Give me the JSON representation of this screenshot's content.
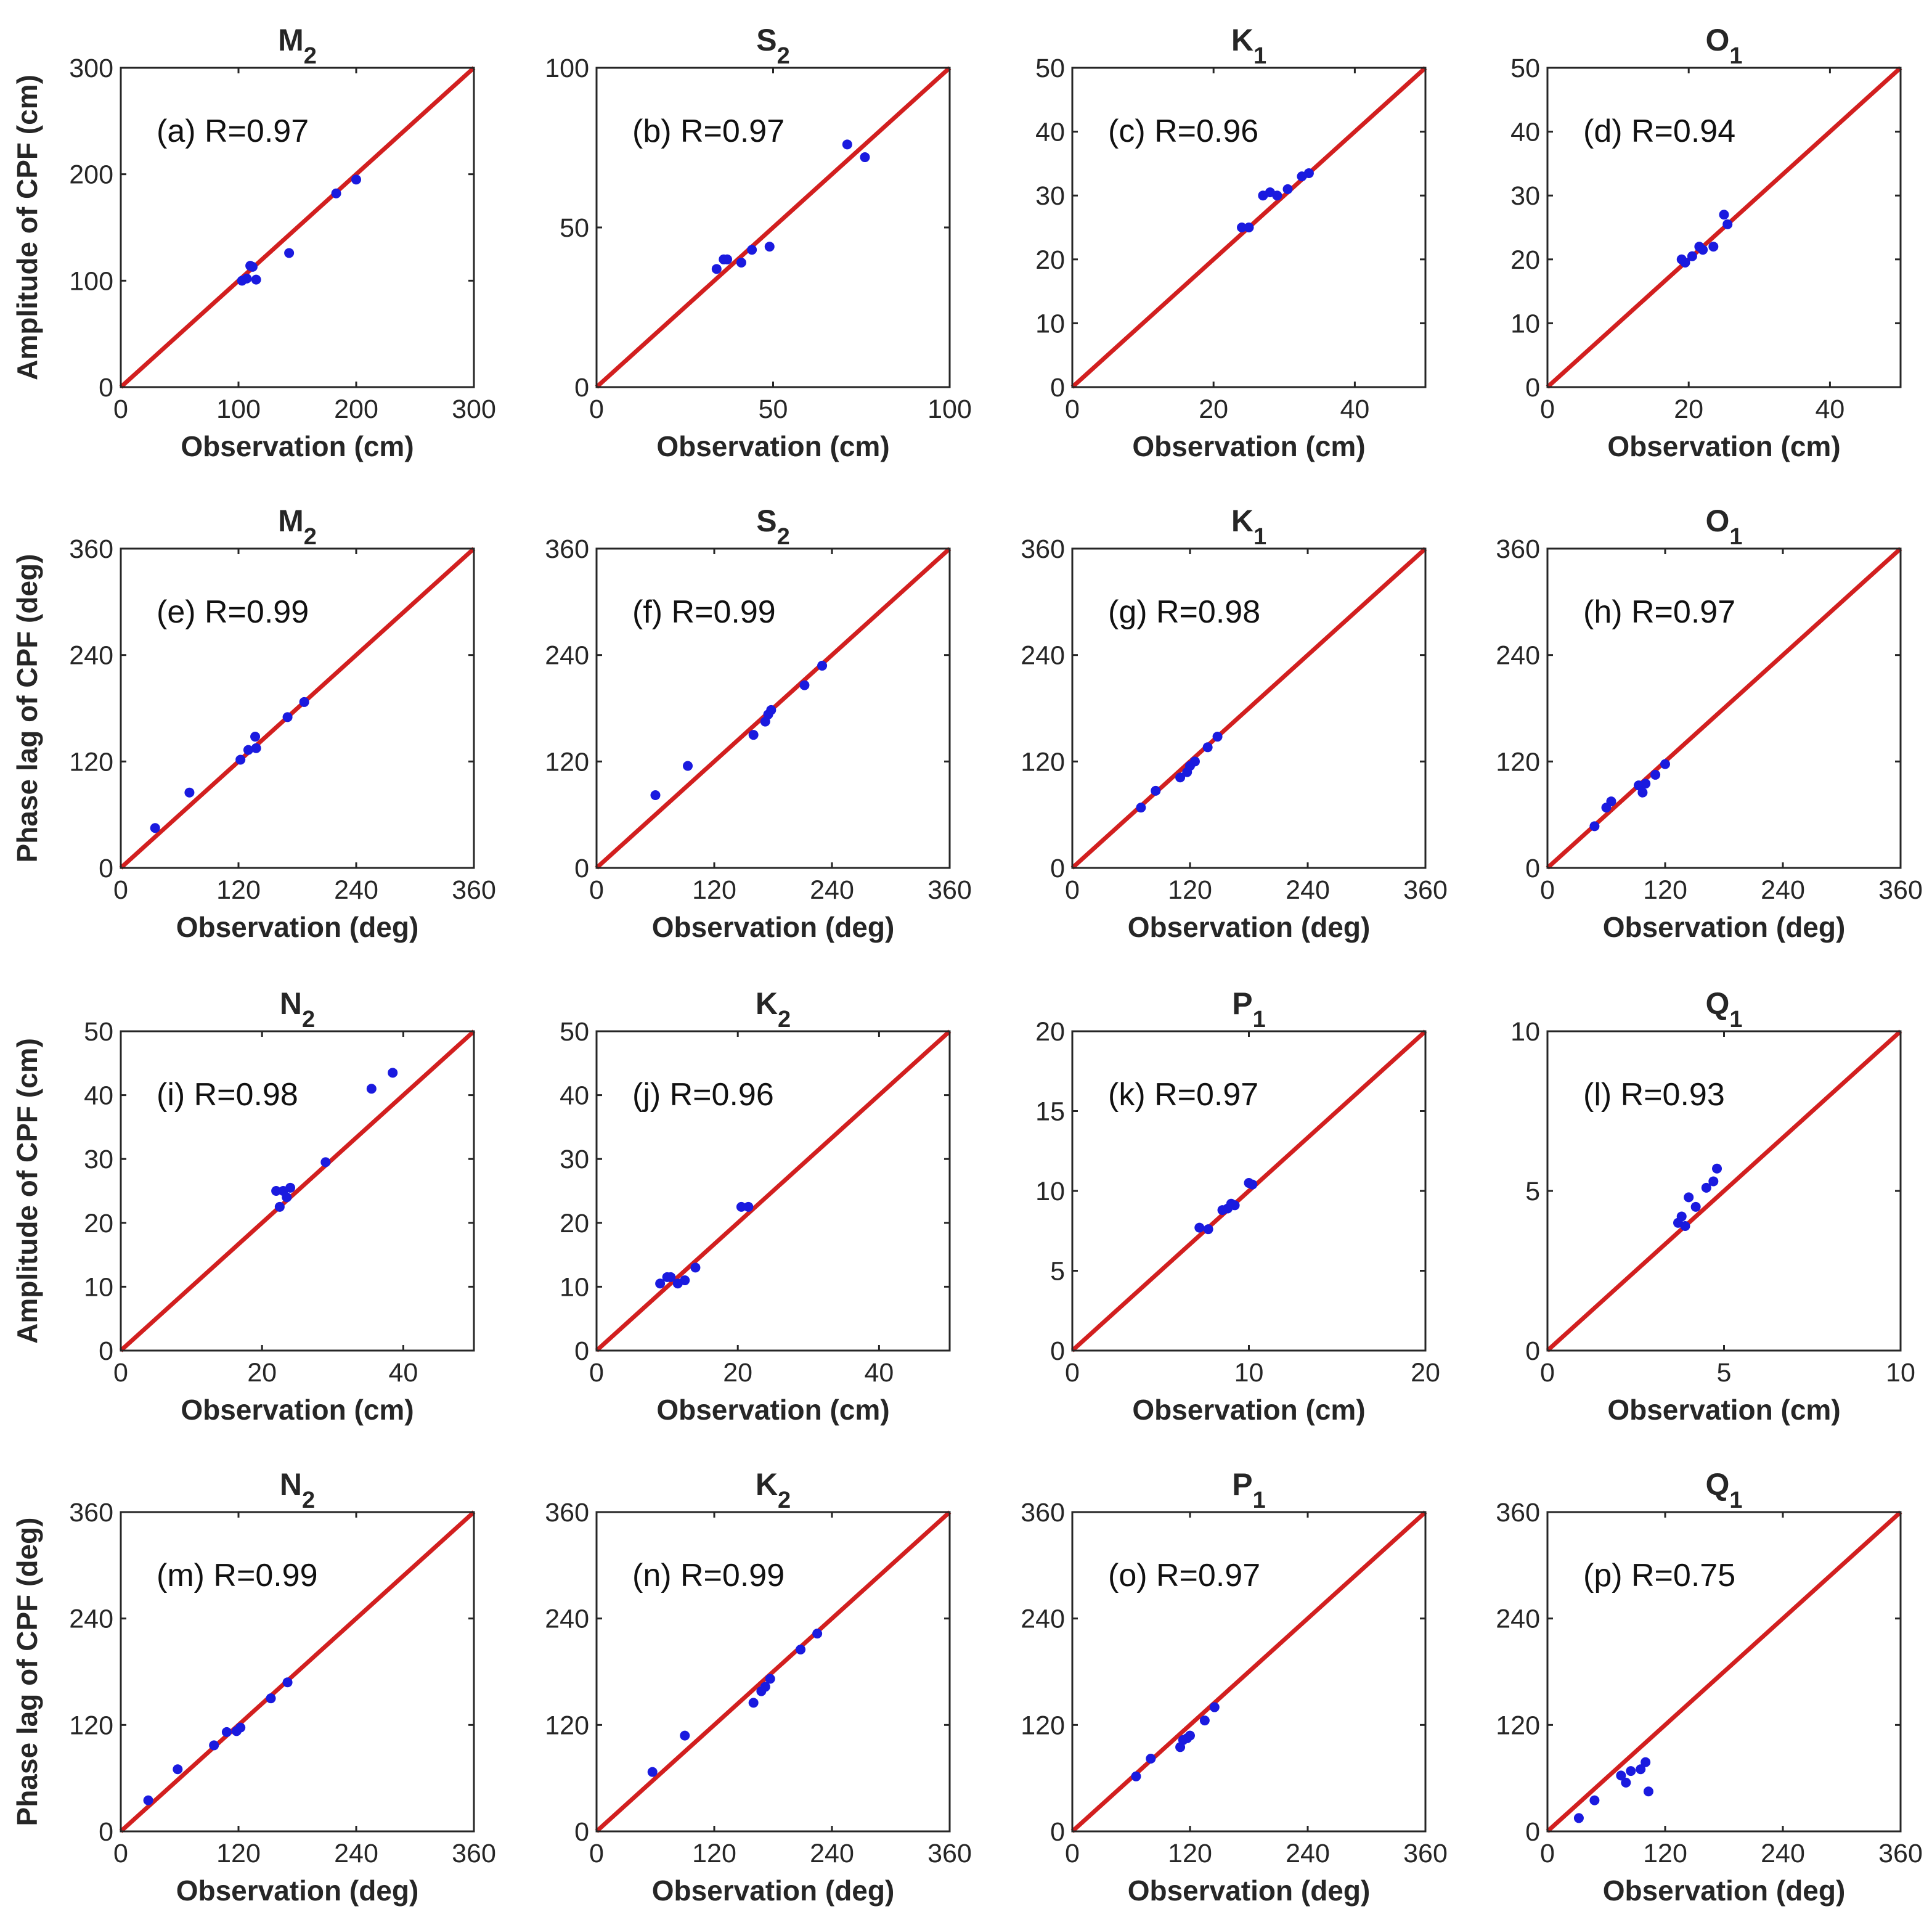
{
  "colors": {
    "identity_line": "#d21f1f",
    "points": "#1a1adf",
    "axes": "#262626"
  },
  "chart_data": [
    {
      "type": "scatter",
      "title": "M",
      "title_sub": "2",
      "panel_label": "(a) R=0.97",
      "xlabel": "Observation (cm)",
      "ylabel": "Amplitude of CPF (cm)",
      "xlim": [
        0,
        300
      ],
      "ylim": [
        0,
        300
      ],
      "xticks": [
        0,
        100,
        200,
        300
      ],
      "yticks": [
        0,
        100,
        200,
        300
      ],
      "identity_line": true,
      "x": [
        103,
        107,
        110,
        112,
        115,
        143,
        183,
        200
      ],
      "y": [
        100,
        102,
        114,
        113,
        101,
        126,
        182,
        195
      ]
    },
    {
      "type": "scatter",
      "title": "S",
      "title_sub": "2",
      "panel_label": "(b) R=0.97",
      "xlabel": "Observation (cm)",
      "ylabel": "",
      "xlim": [
        0,
        100
      ],
      "ylim": [
        0,
        100
      ],
      "xticks": [
        0,
        50,
        100
      ],
      "yticks": [
        0,
        50,
        100
      ],
      "identity_line": true,
      "x": [
        34,
        36,
        37,
        41,
        44,
        49,
        71,
        76
      ],
      "y": [
        37,
        40,
        40,
        39,
        43,
        44,
        76,
        72
      ]
    },
    {
      "type": "scatter",
      "title": "K",
      "title_sub": "1",
      "panel_label": "(c) R=0.96",
      "xlabel": "Observation (cm)",
      "ylabel": "",
      "xlim": [
        0,
        50
      ],
      "ylim": [
        0,
        50
      ],
      "xticks": [
        0,
        20,
        40
      ],
      "yticks": [
        0,
        10,
        20,
        30,
        40,
        50
      ],
      "identity_line": true,
      "x": [
        24,
        25,
        27,
        28,
        29,
        30.5,
        32.5,
        33.5
      ],
      "y": [
        25,
        25,
        30,
        30.5,
        30,
        31,
        33,
        33.5
      ]
    },
    {
      "type": "scatter",
      "title": "O",
      "title_sub": "1",
      "panel_label": "(d) R=0.94",
      "xlabel": "Observation (cm)",
      "ylabel": "",
      "xlim": [
        0,
        50
      ],
      "ylim": [
        0,
        50
      ],
      "xticks": [
        0,
        20,
        40
      ],
      "yticks": [
        0,
        10,
        20,
        30,
        40,
        50
      ],
      "identity_line": true,
      "x": [
        19,
        19.5,
        20.5,
        21.5,
        22,
        23.5,
        25,
        25.5
      ],
      "y": [
        20,
        19.5,
        20.5,
        22,
        21.5,
        22,
        27,
        25.5
      ]
    },
    {
      "type": "scatter",
      "title": "M",
      "title_sub": "2",
      "panel_label": "(e) R=0.99",
      "xlabel": "Observation (deg)",
      "ylabel": "Phase lag of CPF (deg)",
      "xlim": [
        0,
        360
      ],
      "ylim": [
        0,
        360
      ],
      "xticks": [
        0,
        120,
        240,
        360
      ],
      "yticks": [
        0,
        120,
        240,
        360
      ],
      "identity_line": true,
      "x": [
        35,
        70,
        122,
        130,
        137,
        138,
        170,
        187
      ],
      "y": [
        45,
        85,
        122,
        133,
        148,
        135,
        170,
        187
      ]
    },
    {
      "type": "scatter",
      "title": "S",
      "title_sub": "2",
      "panel_label": "(f) R=0.99",
      "xlabel": "Observation (deg)",
      "ylabel": "",
      "xlim": [
        0,
        360
      ],
      "ylim": [
        0,
        360
      ],
      "xticks": [
        0,
        120,
        240,
        360
      ],
      "yticks": [
        0,
        120,
        240,
        360
      ],
      "identity_line": true,
      "x": [
        60,
        93,
        160,
        172,
        175,
        178,
        212,
        230
      ],
      "y": [
        82,
        115,
        150,
        165,
        173,
        178,
        206,
        228
      ]
    },
    {
      "type": "scatter",
      "title": "K",
      "title_sub": "1",
      "panel_label": "(g) R=0.98",
      "xlabel": "Observation (deg)",
      "ylabel": "",
      "xlim": [
        0,
        360
      ],
      "ylim": [
        0,
        360
      ],
      "xticks": [
        0,
        120,
        240,
        360
      ],
      "yticks": [
        0,
        120,
        240,
        360
      ],
      "identity_line": true,
      "x": [
        70,
        85,
        110,
        117,
        120,
        125,
        138,
        148
      ],
      "y": [
        68,
        87,
        102,
        108,
        115,
        120,
        136,
        148
      ]
    },
    {
      "type": "scatter",
      "title": "O",
      "title_sub": "1",
      "panel_label": "(h) R=0.97",
      "xlabel": "Observation (deg)",
      "ylabel": "",
      "xlim": [
        0,
        360
      ],
      "ylim": [
        0,
        360
      ],
      "xticks": [
        0,
        120,
        240,
        360
      ],
      "yticks": [
        0,
        120,
        240,
        360
      ],
      "identity_line": true,
      "x": [
        48,
        60,
        65,
        93,
        97,
        100,
        110,
        120
      ],
      "y": [
        47,
        68,
        75,
        93,
        85,
        95,
        105,
        117
      ]
    },
    {
      "type": "scatter",
      "title": "N",
      "title_sub": "2",
      "panel_label": "(i) R=0.98",
      "xlabel": "Observation (cm)",
      "ylabel": "Amplitude of CPF (cm)",
      "xlim": [
        0,
        50
      ],
      "ylim": [
        0,
        50
      ],
      "xticks": [
        0,
        20,
        40
      ],
      "yticks": [
        0,
        10,
        20,
        30,
        40,
        50
      ],
      "identity_line": true,
      "x": [
        22,
        22.5,
        23,
        23.5,
        24,
        29,
        35.5,
        38.5
      ],
      "y": [
        25,
        22.5,
        25,
        24,
        25.5,
        29.5,
        41,
        43.5
      ]
    },
    {
      "type": "scatter",
      "title": "K",
      "title_sub": "2",
      "panel_label": "(j) R=0.96",
      "xlabel": "Observation (cm)",
      "ylabel": "",
      "xlim": [
        0,
        50
      ],
      "ylim": [
        0,
        50
      ],
      "xticks": [
        0,
        20,
        40
      ],
      "yticks": [
        0,
        10,
        20,
        30,
        40,
        50
      ],
      "identity_line": true,
      "x": [
        9,
        10,
        10.5,
        11.5,
        12.5,
        14,
        20.5,
        21.5
      ],
      "y": [
        10.5,
        11.5,
        11.5,
        10.5,
        11,
        13,
        22.5,
        22.5
      ]
    },
    {
      "type": "scatter",
      "title": "P",
      "title_sub": "1",
      "panel_label": "(k) R=0.97",
      "xlabel": "Observation (cm)",
      "ylabel": "",
      "xlim": [
        0,
        20
      ],
      "ylim": [
        0,
        20
      ],
      "xticks": [
        0,
        10,
        20
      ],
      "yticks": [
        0,
        5,
        10,
        15,
        20
      ],
      "identity_line": true,
      "x": [
        7.2,
        7.7,
        8.5,
        8.8,
        9,
        9.2,
        10,
        10.2
      ],
      "y": [
        7.7,
        7.6,
        8.8,
        8.9,
        9.2,
        9.1,
        10.5,
        10.4
      ]
    },
    {
      "type": "scatter",
      "title": "Q",
      "title_sub": "1",
      "panel_label": "(l) R=0.93",
      "xlabel": "Observation (cm)",
      "ylabel": "",
      "xlim": [
        0,
        10
      ],
      "ylim": [
        0,
        10
      ],
      "xticks": [
        0,
        5,
        10
      ],
      "yticks": [
        0,
        5,
        10
      ],
      "identity_line": true,
      "x": [
        3.7,
        3.8,
        3.9,
        4.0,
        4.2,
        4.5,
        4.7,
        4.8
      ],
      "y": [
        4.0,
        4.2,
        3.9,
        4.8,
        4.5,
        5.1,
        5.3,
        5.7
      ]
    },
    {
      "type": "scatter",
      "title": "N",
      "title_sub": "2",
      "panel_label": "(m) R=0.99",
      "xlabel": "Observation (deg)",
      "ylabel": "Phase lag of CPF (deg)",
      "xlim": [
        0,
        360
      ],
      "ylim": [
        0,
        360
      ],
      "xticks": [
        0,
        120,
        240,
        360
      ],
      "yticks": [
        0,
        120,
        240,
        360
      ],
      "identity_line": true,
      "x": [
        28,
        58,
        95,
        108,
        118,
        122,
        153,
        170
      ],
      "y": [
        35,
        70,
        97,
        112,
        113,
        117,
        150,
        168
      ]
    },
    {
      "type": "scatter",
      "title": "K",
      "title_sub": "2",
      "panel_label": "(n) R=0.99",
      "xlabel": "Observation (deg)",
      "ylabel": "",
      "xlim": [
        0,
        360
      ],
      "ylim": [
        0,
        360
      ],
      "xticks": [
        0,
        120,
        240,
        360
      ],
      "yticks": [
        0,
        120,
        240,
        360
      ],
      "identity_line": true,
      "x": [
        57,
        90,
        160,
        168,
        172,
        177,
        208,
        225
      ],
      "y": [
        67,
        108,
        145,
        158,
        163,
        172,
        205,
        223
      ]
    },
    {
      "type": "scatter",
      "title": "P",
      "title_sub": "1",
      "panel_label": "(o) R=0.97",
      "xlabel": "Observation (deg)",
      "ylabel": "",
      "xlim": [
        0,
        360
      ],
      "ylim": [
        0,
        360
      ],
      "xticks": [
        0,
        120,
        240,
        360
      ],
      "yticks": [
        0,
        120,
        240,
        360
      ],
      "identity_line": true,
      "x": [
        65,
        80,
        110,
        113,
        117,
        120,
        135,
        145
      ],
      "y": [
        62,
        82,
        95,
        103,
        105,
        108,
        125,
        140
      ]
    },
    {
      "type": "scatter",
      "title": "Q",
      "title_sub": "1",
      "panel_label": "(p) R=0.75",
      "xlabel": "Observation (deg)",
      "ylabel": "",
      "xlim": [
        0,
        360
      ],
      "ylim": [
        0,
        360
      ],
      "xticks": [
        0,
        120,
        240,
        360
      ],
      "yticks": [
        0,
        120,
        240,
        360
      ],
      "identity_line": true,
      "x": [
        32,
        48,
        75,
        80,
        85,
        95,
        100,
        103
      ],
      "y": [
        15,
        35,
        63,
        55,
        68,
        70,
        78,
        45
      ]
    }
  ]
}
